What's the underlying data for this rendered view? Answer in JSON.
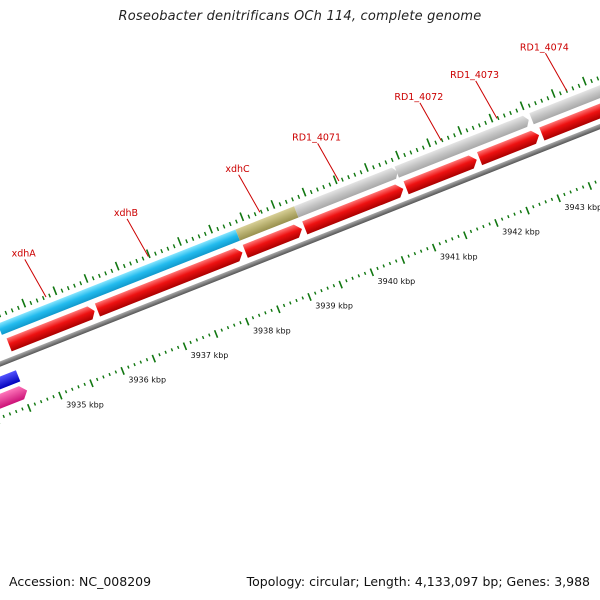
{
  "map": {
    "title": "Roseobacter denitrificans OCh 114, complete genome",
    "accession_text": "Accession: NC_008209",
    "summary_text": "Topology: circular; Length: 4,133,097 bp; Genes: 3,988"
  },
  "colors": {
    "backbone": "#7a7a7a",
    "cds": "#ee1111",
    "gene_xdh": "#22bbee",
    "gene_xdhC": "#b8b070",
    "gene_other": "#c4c4c4",
    "tick": "#117711",
    "label": "#cc0000",
    "pink_feature": "#ee2288",
    "blue_feature": "#1111dd"
  },
  "ticks": [
    {
      "label": "3935 kbp"
    },
    {
      "label": "3936 kbp"
    },
    {
      "label": "3937 kbp"
    },
    {
      "label": "3938 kbp"
    },
    {
      "label": "3939 kbp"
    },
    {
      "label": "3940 kbp"
    },
    {
      "label": "3941 kbp"
    },
    {
      "label": "3942 kbp"
    },
    {
      "label": "3943 kbp"
    }
  ],
  "gene_labels": [
    {
      "label": "xdhA"
    },
    {
      "label": "xdhB"
    },
    {
      "label": "xdhC"
    },
    {
      "label": "RD1_4071"
    },
    {
      "label": "RD1_4072"
    },
    {
      "label": "RD1_4073"
    },
    {
      "label": "RD1_4074"
    }
  ]
}
